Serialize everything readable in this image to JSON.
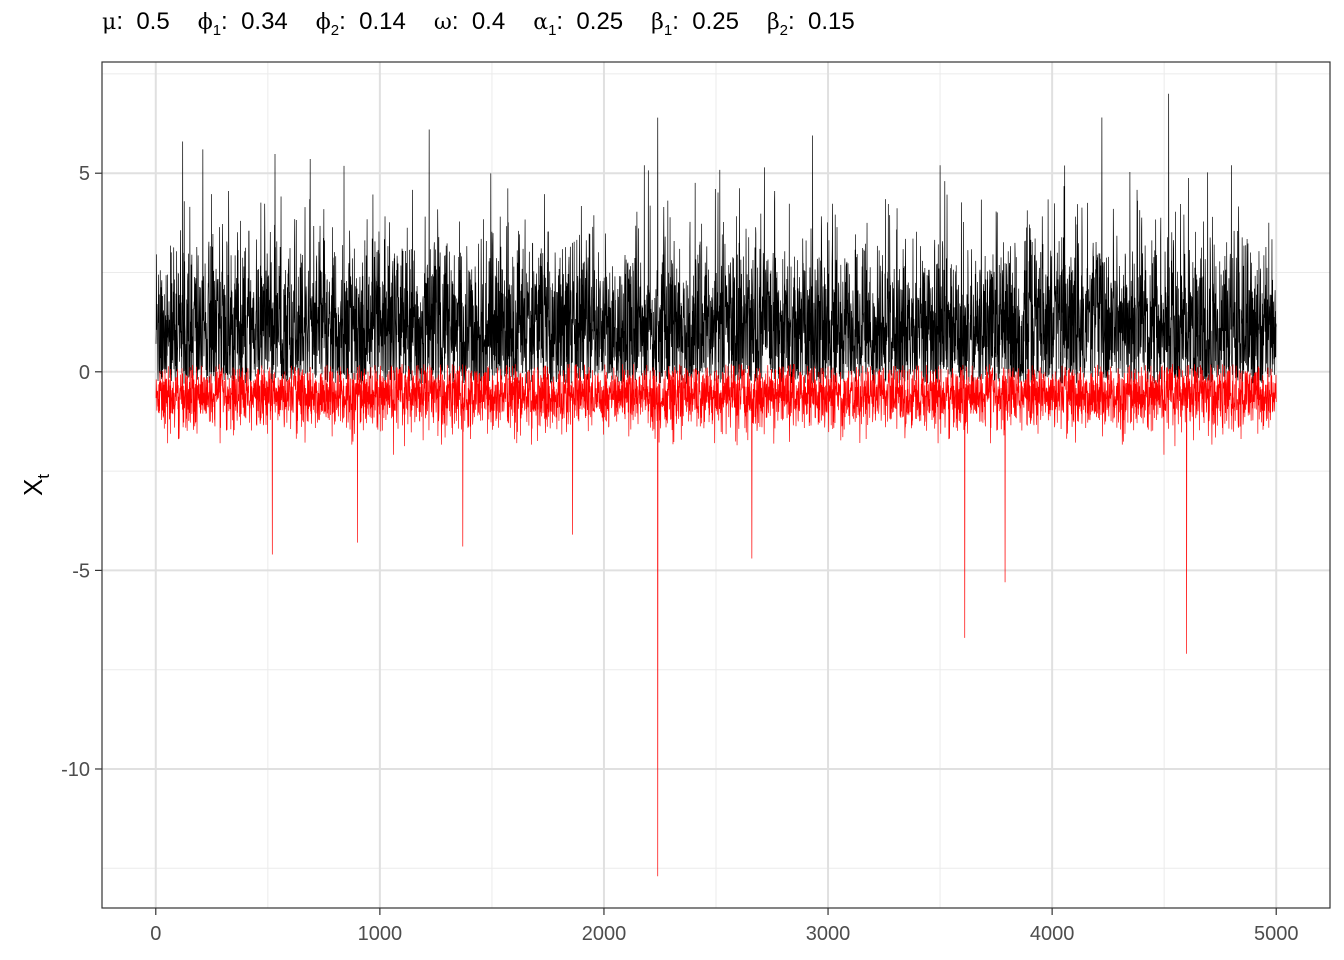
{
  "title_params": [
    {
      "symbol": "μ",
      "sub": "",
      "value": "0.5"
    },
    {
      "symbol": "ϕ",
      "sub": "1",
      "value": "0.34"
    },
    {
      "symbol": "ϕ",
      "sub": "2",
      "value": "0.14"
    },
    {
      "symbol": "ω",
      "sub": "",
      "value": "0.4"
    },
    {
      "symbol": "α",
      "sub": "1",
      "value": "0.25"
    },
    {
      "symbol": "β",
      "sub": "1",
      "value": "0.25"
    },
    {
      "symbol": "β",
      "sub": "2",
      "value": "0.15"
    }
  ],
  "chart_data": {
    "type": "line",
    "xlabel": "",
    "ylabel": {
      "base": "X",
      "sub": "t"
    },
    "xlim": [
      -240,
      5240
    ],
    "ylim": [
      -13.5,
      7.8
    ],
    "x_ticks": [
      0,
      1000,
      2000,
      3000,
      4000,
      5000
    ],
    "x_tick_labels": [
      "0",
      "1000",
      "2000",
      "3000",
      "4000",
      "5000"
    ],
    "y_ticks": [
      5,
      0,
      -5,
      -10
    ],
    "y_tick_labels": [
      "5",
      "0",
      "-5",
      "-10"
    ],
    "grid": true,
    "n_points": 5000,
    "series": [
      {
        "color": "#000000",
        "center": 1.1,
        "spread": 1.4,
        "lower_bound": -0.3,
        "spikes": [
          [
            120,
            5.8
          ],
          [
            210,
            5.6
          ],
          [
            1220,
            6.1
          ],
          [
            2240,
            6.4
          ],
          [
            2180,
            5.2
          ],
          [
            3500,
            5.2
          ],
          [
            4520,
            7.0
          ],
          [
            4800,
            5.2
          ]
        ]
      },
      {
        "color": "#ff0000",
        "center": -0.6,
        "spread": 0.5,
        "upper_bound": 0.2,
        "spikes": [
          [
            520,
            -4.6
          ],
          [
            900,
            -4.3
          ],
          [
            1370,
            -4.4
          ],
          [
            1860,
            -4.1
          ],
          [
            2240,
            -12.7
          ],
          [
            2660,
            -4.7
          ],
          [
            3610,
            -6.7
          ],
          [
            3790,
            -5.3
          ],
          [
            4600,
            -7.1
          ]
        ]
      }
    ]
  }
}
